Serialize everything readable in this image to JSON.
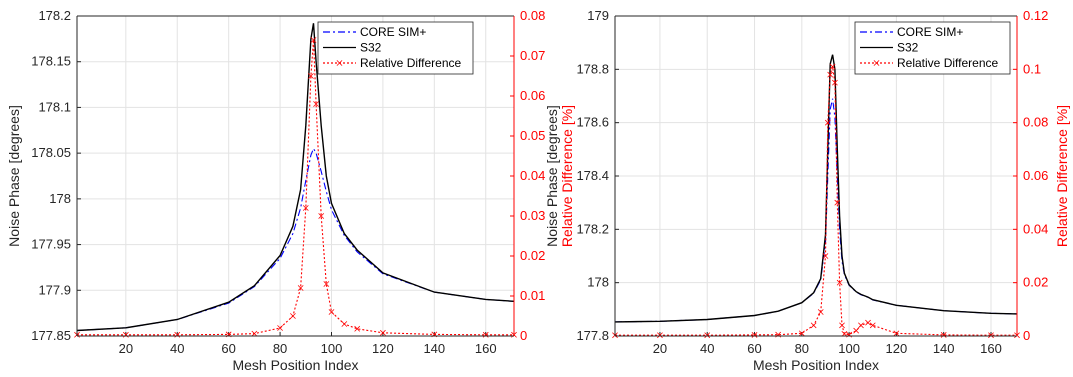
{
  "chart_data": [
    {
      "type": "line",
      "xlabel": "Mesh Position Index",
      "ylabel": "Noise Phase [degrees]",
      "y2label": "Relative Difference [%]",
      "xlim": [
        1,
        171
      ],
      "ylim": [
        177.85,
        178.2
      ],
      "y2lim": [
        0,
        0.08
      ],
      "grid": true,
      "legend_position": "top-right",
      "x_ticks": [
        20,
        40,
        60,
        80,
        100,
        120,
        140,
        160
      ],
      "y_ticks": [
        177.85,
        177.9,
        177.95,
        178,
        178.05,
        178.1,
        178.15,
        178.2
      ],
      "y_tick_labels": [
        "177.85",
        "177.9",
        "177.95",
        "178",
        "178.05",
        "178.1",
        "178.15",
        "178.2"
      ],
      "y2_ticks": [
        0,
        0.01,
        0.02,
        0.03,
        0.04,
        0.05,
        0.06,
        0.07,
        0.08
      ],
      "y2_tick_labels": [
        "0",
        "0.01",
        "0.02",
        "0.03",
        "0.04",
        "0.05",
        "0.06",
        "0.07",
        "0.08"
      ],
      "x": [
        1,
        20,
        40,
        60,
        70,
        80,
        85,
        88,
        90,
        92,
        93,
        94,
        96,
        98,
        100,
        105,
        110,
        120,
        140,
        160,
        171
      ],
      "series": [
        {
          "name": "CORE SIM+",
          "axis": "left",
          "color": "#0000ff",
          "dash": "dashdot",
          "marker": "none",
          "values": [
            177.856,
            177.859,
            177.868,
            177.886,
            177.904,
            177.935,
            177.962,
            177.99,
            178.02,
            178.048,
            178.055,
            178.05,
            178.03,
            178.008,
            177.988,
            177.96,
            177.942,
            177.918,
            177.898,
            177.89,
            177.888
          ]
        },
        {
          "name": "S32",
          "axis": "left",
          "color": "#000000",
          "dash": "solid",
          "marker": "none",
          "values": [
            177.856,
            177.859,
            177.868,
            177.887,
            177.905,
            177.938,
            177.97,
            178.01,
            178.08,
            178.175,
            178.192,
            178.15,
            178.08,
            178.025,
            177.995,
            177.962,
            177.944,
            177.919,
            177.898,
            177.89,
            177.888
          ]
        },
        {
          "name": "Relative Difference",
          "axis": "right",
          "color": "#ff0000",
          "dash": "dotted",
          "marker": "x",
          "values": [
            0.0003,
            0.0003,
            0.0003,
            0.0004,
            0.0006,
            0.002,
            0.005,
            0.012,
            0.032,
            0.065,
            0.074,
            0.058,
            0.03,
            0.013,
            0.006,
            0.003,
            0.0018,
            0.0008,
            0.0004,
            0.0003,
            0.0003
          ]
        }
      ]
    },
    {
      "type": "line",
      "xlabel": "Mesh Position Index",
      "ylabel": "Noise Phase [degrees]",
      "y2label": "Relative Difference [%]",
      "xlim": [
        1,
        171
      ],
      "ylim": [
        177.8,
        179
      ],
      "y2lim": [
        0,
        0.12
      ],
      "grid": true,
      "legend_position": "top-right",
      "x_ticks": [
        20,
        40,
        60,
        80,
        100,
        120,
        140,
        160
      ],
      "y_ticks": [
        177.8,
        178,
        178.2,
        178.4,
        178.6,
        178.8,
        179
      ],
      "y_tick_labels": [
        "177.8",
        "178",
        "178.2",
        "178.4",
        "178.6",
        "178.8",
        "179"
      ],
      "y2_ticks": [
        0,
        0.02,
        0.04,
        0.06,
        0.08,
        0.1,
        0.12
      ],
      "y2_tick_labels": [
        "0",
        "0.02",
        "0.04",
        "0.06",
        "0.08",
        "0.1",
        "0.12"
      ],
      "x": [
        1,
        20,
        40,
        60,
        70,
        80,
        85,
        88,
        90,
        91,
        92,
        93,
        94,
        95,
        96,
        97,
        98,
        100,
        103,
        105,
        108,
        110,
        120,
        140,
        160,
        171
      ],
      "series": [
        {
          "name": "CORE SIM+",
          "axis": "left",
          "color": "#0000ff",
          "dash": "dashdot",
          "marker": "none",
          "values": [
            177.853,
            177.855,
            177.862,
            177.877,
            177.893,
            177.925,
            177.96,
            178.01,
            178.15,
            178.4,
            178.65,
            178.69,
            178.62,
            178.4,
            178.2,
            178.08,
            178.03,
            177.99,
            177.965,
            177.955,
            177.945,
            177.935,
            177.915,
            177.895,
            177.885,
            177.883
          ]
        },
        {
          "name": "S32",
          "axis": "left",
          "color": "#000000",
          "dash": "solid",
          "marker": "none",
          "values": [
            177.853,
            177.855,
            177.862,
            177.877,
            177.893,
            177.925,
            177.962,
            178.015,
            178.18,
            178.5,
            178.82,
            178.855,
            178.8,
            178.5,
            178.25,
            178.1,
            178.035,
            177.992,
            177.966,
            177.956,
            177.946,
            177.936,
            177.915,
            177.895,
            177.885,
            177.883
          ]
        },
        {
          "name": "Relative Difference",
          "axis": "right",
          "color": "#ff0000",
          "dash": "dotted",
          "marker": "x",
          "values": [
            0.0003,
            0.0003,
            0.0003,
            0.0004,
            0.0005,
            0.001,
            0.004,
            0.009,
            0.03,
            0.08,
            0.098,
            0.101,
            0.095,
            0.05,
            0.02,
            0.004,
            0.0008,
            0.0005,
            0.002,
            0.004,
            0.005,
            0.004,
            0.001,
            0.0004,
            0.0003,
            0.0003
          ]
        }
      ]
    }
  ]
}
